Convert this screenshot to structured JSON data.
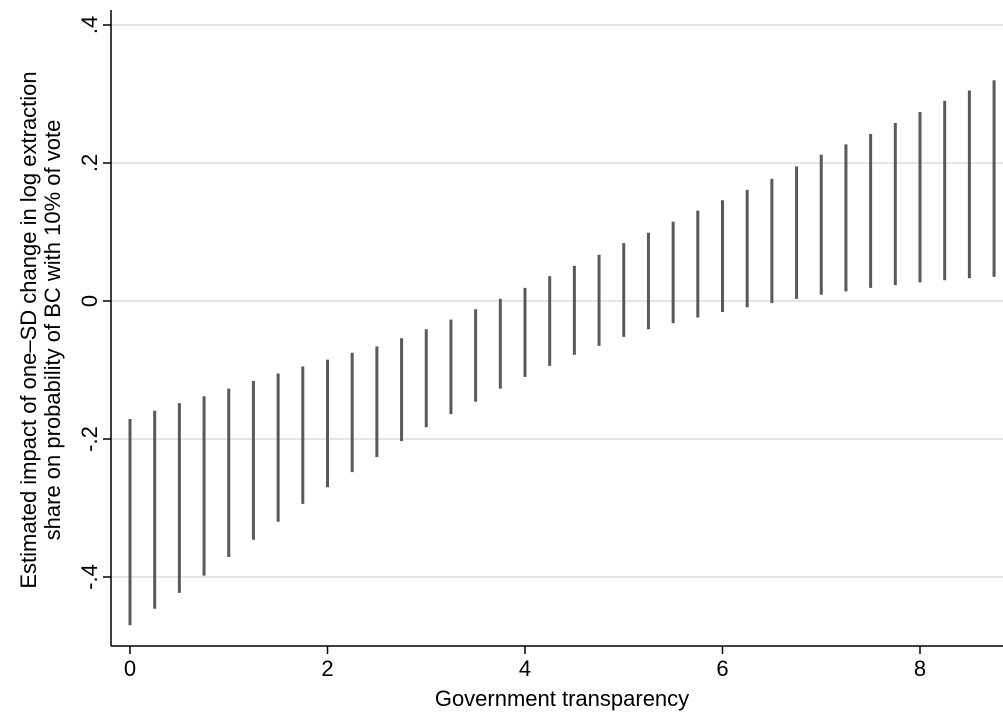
{
  "chart_data": {
    "type": "range_bar",
    "xlabel": "Government transparency",
    "ylabel_lines": [
      "Estimated impact of one–SD change in log extraction",
      "share on probability of BC with 10% of vote"
    ],
    "xlim": [
      -0.25,
      8.75
    ],
    "ylim": [
      -0.5,
      0.42
    ],
    "x_ticks": [
      0,
      2,
      4,
      6,
      8
    ],
    "x_tick_labels": [
      "0",
      "2",
      "4",
      "6",
      "8"
    ],
    "y_ticks": [
      -0.4,
      -0.2,
      0,
      0.2,
      0.4
    ],
    "y_tick_labels": [
      "-.4",
      "-.2",
      "0",
      ".2",
      ".4"
    ],
    "grid": true,
    "bar_color": "#595959",
    "grid_color": "#e5e5e5",
    "x": [
      0,
      0.25,
      0.5,
      0.75,
      1,
      1.25,
      1.5,
      1.75,
      2,
      2.25,
      2.5,
      2.75,
      3,
      3.25,
      3.5,
      3.75,
      4,
      4.25,
      4.5,
      4.75,
      5,
      5.25,
      5.5,
      5.75,
      6,
      6.25,
      6.5,
      6.75,
      7,
      7.25,
      7.5,
      7.75,
      8,
      8.25,
      8.5,
      8.75
    ],
    "lower": [
      -0.47,
      -0.446,
      -0.423,
      -0.398,
      -0.371,
      -0.346,
      -0.32,
      -0.294,
      -0.27,
      -0.248,
      -0.226,
      -0.203,
      -0.183,
      -0.164,
      -0.146,
      -0.127,
      -0.11,
      -0.094,
      -0.078,
      -0.065,
      -0.052,
      -0.041,
      -0.032,
      -0.024,
      -0.016,
      -0.009,
      -0.003,
      0.003,
      0.009,
      0.014,
      0.019,
      0.023,
      0.027,
      0.03,
      0.033,
      0.035
    ],
    "upper": [
      -0.171,
      -0.159,
      -0.148,
      -0.138,
      -0.127,
      -0.116,
      -0.105,
      -0.095,
      -0.085,
      -0.075,
      -0.066,
      -0.054,
      -0.041,
      -0.027,
      -0.012,
      0.003,
      0.019,
      0.036,
      0.051,
      0.067,
      0.084,
      0.099,
      0.115,
      0.131,
      0.146,
      0.161,
      0.177,
      0.195,
      0.212,
      0.227,
      0.242,
      0.258,
      0.274,
      0.29,
      0.305,
      0.32
    ]
  }
}
